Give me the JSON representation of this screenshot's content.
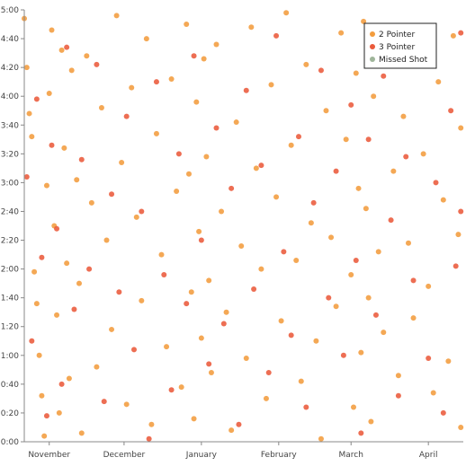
{
  "chart_data": {
    "type": "scatter",
    "title": "",
    "xlabel": "",
    "ylabel": "",
    "x_domain": [
      "2019-10-22",
      "2020-04-15"
    ],
    "y_range_seconds": [
      0,
      300
    ],
    "x_ticks": [
      {
        "date": "2019-11-01",
        "label": "November"
      },
      {
        "date": "2019-12-01",
        "label": "December"
      },
      {
        "date": "2020-01-01",
        "label": "January"
      },
      {
        "date": "2020-02-01",
        "label": "February"
      },
      {
        "date": "2020-03-01",
        "label": "March"
      },
      {
        "date": "2020-04-01",
        "label": "April"
      }
    ],
    "y_ticks": [
      {
        "value": 0,
        "label": "0:00"
      },
      {
        "value": 20,
        "label": "0:20"
      },
      {
        "value": 40,
        "label": "0:40"
      },
      {
        "value": 60,
        "label": "1:00"
      },
      {
        "value": 80,
        "label": "1:20"
      },
      {
        "value": 100,
        "label": "1:40"
      },
      {
        "value": 120,
        "label": "2:00"
      },
      {
        "value": 140,
        "label": "2:20"
      },
      {
        "value": 160,
        "label": "2:40"
      },
      {
        "value": 180,
        "label": "3:00"
      },
      {
        "value": 200,
        "label": "3:20"
      },
      {
        "value": 220,
        "label": "3:40"
      },
      {
        "value": 240,
        "label": "4:00"
      },
      {
        "value": 260,
        "label": "4:20"
      },
      {
        "value": 280,
        "label": "4:40"
      },
      {
        "value": 300,
        "label": "5:00"
      }
    ],
    "legend": {
      "position": "top-right",
      "entries": [
        {
          "name": "2 Pointer",
          "color": "#f39c3d"
        },
        {
          "name": "3 Pointer",
          "color": "#ea5a3b"
        },
        {
          "name": "Missed Shot",
          "color": "#9fb59a"
        }
      ]
    },
    "series": [
      {
        "name": "2 Pointer",
        "color": "#f39c3d",
        "points": [
          {
            "x": "2019-10-22",
            "y": 294
          },
          {
            "x": "2019-10-23",
            "y": 260
          },
          {
            "x": "2019-10-24",
            "y": 228
          },
          {
            "x": "2019-10-25",
            "y": 212
          },
          {
            "x": "2019-10-26",
            "y": 118
          },
          {
            "x": "2019-10-27",
            "y": 96
          },
          {
            "x": "2019-10-28",
            "y": 60
          },
          {
            "x": "2019-10-29",
            "y": 32
          },
          {
            "x": "2019-10-30",
            "y": 4
          },
          {
            "x": "2019-10-31",
            "y": 178
          },
          {
            "x": "2019-11-01",
            "y": 242
          },
          {
            "x": "2019-11-02",
            "y": 286
          },
          {
            "x": "2019-11-03",
            "y": 150
          },
          {
            "x": "2019-11-04",
            "y": 88
          },
          {
            "x": "2019-11-05",
            "y": 20
          },
          {
            "x": "2019-11-06",
            "y": 272
          },
          {
            "x": "2019-11-07",
            "y": 204
          },
          {
            "x": "2019-11-08",
            "y": 124
          },
          {
            "x": "2019-11-09",
            "y": 44
          },
          {
            "x": "2019-11-10",
            "y": 258
          },
          {
            "x": "2019-11-12",
            "y": 182
          },
          {
            "x": "2019-11-13",
            "y": 110
          },
          {
            "x": "2019-11-14",
            "y": 6
          },
          {
            "x": "2019-11-16",
            "y": 268
          },
          {
            "x": "2019-11-18",
            "y": 166
          },
          {
            "x": "2019-11-20",
            "y": 52
          },
          {
            "x": "2019-11-22",
            "y": 232
          },
          {
            "x": "2019-11-24",
            "y": 140
          },
          {
            "x": "2019-11-26",
            "y": 78
          },
          {
            "x": "2019-11-28",
            "y": 296
          },
          {
            "x": "2019-11-30",
            "y": 194
          },
          {
            "x": "2019-12-02",
            "y": 26
          },
          {
            "x": "2019-12-04",
            "y": 246
          },
          {
            "x": "2019-12-06",
            "y": 156
          },
          {
            "x": "2019-12-08",
            "y": 98
          },
          {
            "x": "2019-12-10",
            "y": 280
          },
          {
            "x": "2019-12-12",
            "y": 12
          },
          {
            "x": "2019-12-14",
            "y": 214
          },
          {
            "x": "2019-12-16",
            "y": 130
          },
          {
            "x": "2019-12-18",
            "y": 66
          },
          {
            "x": "2019-12-20",
            "y": 252
          },
          {
            "x": "2019-12-22",
            "y": 174
          },
          {
            "x": "2019-12-24",
            "y": 38
          },
          {
            "x": "2019-12-26",
            "y": 290
          },
          {
            "x": "2019-12-27",
            "y": 186
          },
          {
            "x": "2019-12-28",
            "y": 104
          },
          {
            "x": "2019-12-29",
            "y": 16
          },
          {
            "x": "2019-12-30",
            "y": 236
          },
          {
            "x": "2019-12-31",
            "y": 146
          },
          {
            "x": "2020-01-01",
            "y": 72
          },
          {
            "x": "2020-01-02",
            "y": 266
          },
          {
            "x": "2020-01-03",
            "y": 198
          },
          {
            "x": "2020-01-04",
            "y": 112
          },
          {
            "x": "2020-01-05",
            "y": 48
          },
          {
            "x": "2020-01-07",
            "y": 276
          },
          {
            "x": "2020-01-09",
            "y": 160
          },
          {
            "x": "2020-01-11",
            "y": 90
          },
          {
            "x": "2020-01-13",
            "y": 8
          },
          {
            "x": "2020-01-15",
            "y": 222
          },
          {
            "x": "2020-01-17",
            "y": 136
          },
          {
            "x": "2020-01-19",
            "y": 58
          },
          {
            "x": "2020-01-21",
            "y": 288
          },
          {
            "x": "2020-01-23",
            "y": 190
          },
          {
            "x": "2020-01-25",
            "y": 120
          },
          {
            "x": "2020-01-27",
            "y": 30
          },
          {
            "x": "2020-01-29",
            "y": 248
          },
          {
            "x": "2020-01-31",
            "y": 170
          },
          {
            "x": "2020-02-02",
            "y": 84
          },
          {
            "x": "2020-02-04",
            "y": 298
          },
          {
            "x": "2020-02-06",
            "y": 206
          },
          {
            "x": "2020-02-08",
            "y": 126
          },
          {
            "x": "2020-02-10",
            "y": 42
          },
          {
            "x": "2020-02-12",
            "y": 262
          },
          {
            "x": "2020-02-14",
            "y": 152
          },
          {
            "x": "2020-02-16",
            "y": 70
          },
          {
            "x": "2020-02-18",
            "y": 2
          },
          {
            "x": "2020-02-20",
            "y": 230
          },
          {
            "x": "2020-02-22",
            "y": 142
          },
          {
            "x": "2020-02-24",
            "y": 94
          },
          {
            "x": "2020-02-26",
            "y": 284
          },
          {
            "x": "2020-02-28",
            "y": 210
          },
          {
            "x": "2020-03-01",
            "y": 116
          },
          {
            "x": "2020-03-02",
            "y": 24
          },
          {
            "x": "2020-03-03",
            "y": 256
          },
          {
            "x": "2020-03-04",
            "y": 176
          },
          {
            "x": "2020-03-05",
            "y": 62
          },
          {
            "x": "2020-03-06",
            "y": 292
          },
          {
            "x": "2020-03-07",
            "y": 162
          },
          {
            "x": "2020-03-08",
            "y": 100
          },
          {
            "x": "2020-03-09",
            "y": 14
          },
          {
            "x": "2020-03-10",
            "y": 240
          },
          {
            "x": "2020-03-12",
            "y": 132
          },
          {
            "x": "2020-03-14",
            "y": 76
          },
          {
            "x": "2020-03-16",
            "y": 270
          },
          {
            "x": "2020-03-18",
            "y": 188
          },
          {
            "x": "2020-03-20",
            "y": 46
          },
          {
            "x": "2020-03-22",
            "y": 226
          },
          {
            "x": "2020-03-24",
            "y": 138
          },
          {
            "x": "2020-03-26",
            "y": 86
          },
          {
            "x": "2020-03-28",
            "y": 278
          },
          {
            "x": "2020-03-30",
            "y": 200
          },
          {
            "x": "2020-04-01",
            "y": 108
          },
          {
            "x": "2020-04-03",
            "y": 34
          },
          {
            "x": "2020-04-05",
            "y": 250
          },
          {
            "x": "2020-04-07",
            "y": 168
          },
          {
            "x": "2020-04-09",
            "y": 56
          },
          {
            "x": "2020-04-11",
            "y": 282
          },
          {
            "x": "2020-04-13",
            "y": 144
          },
          {
            "x": "2020-04-14",
            "y": 10
          },
          {
            "x": "2020-04-14",
            "y": 218
          }
        ]
      },
      {
        "name": "3 Pointer",
        "color": "#ea5a3b",
        "points": [
          {
            "x": "2019-10-23",
            "y": 184
          },
          {
            "x": "2019-10-25",
            "y": 70
          },
          {
            "x": "2019-10-27",
            "y": 238
          },
          {
            "x": "2019-10-29",
            "y": 128
          },
          {
            "x": "2019-10-31",
            "y": 18
          },
          {
            "x": "2019-11-02",
            "y": 206
          },
          {
            "x": "2019-11-04",
            "y": 148
          },
          {
            "x": "2019-11-06",
            "y": 40
          },
          {
            "x": "2019-11-08",
            "y": 274
          },
          {
            "x": "2019-11-11",
            "y": 92
          },
          {
            "x": "2019-11-14",
            "y": 196
          },
          {
            "x": "2019-11-17",
            "y": 120
          },
          {
            "x": "2019-11-20",
            "y": 262
          },
          {
            "x": "2019-11-23",
            "y": 28
          },
          {
            "x": "2019-11-26",
            "y": 172
          },
          {
            "x": "2019-11-29",
            "y": 104
          },
          {
            "x": "2019-12-02",
            "y": 226
          },
          {
            "x": "2019-12-05",
            "y": 64
          },
          {
            "x": "2019-12-08",
            "y": 160
          },
          {
            "x": "2019-12-11",
            "y": 2
          },
          {
            "x": "2019-12-14",
            "y": 250
          },
          {
            "x": "2019-12-17",
            "y": 116
          },
          {
            "x": "2019-12-20",
            "y": 36
          },
          {
            "x": "2019-12-23",
            "y": 200
          },
          {
            "x": "2019-12-26",
            "y": 96
          },
          {
            "x": "2019-12-29",
            "y": 268
          },
          {
            "x": "2020-01-01",
            "y": 140
          },
          {
            "x": "2020-01-04",
            "y": 54
          },
          {
            "x": "2020-01-07",
            "y": 218
          },
          {
            "x": "2020-01-10",
            "y": 82
          },
          {
            "x": "2020-01-13",
            "y": 176
          },
          {
            "x": "2020-01-16",
            "y": 12
          },
          {
            "x": "2020-01-19",
            "y": 244
          },
          {
            "x": "2020-01-22",
            "y": 106
          },
          {
            "x": "2020-01-25",
            "y": 192
          },
          {
            "x": "2020-01-28",
            "y": 48
          },
          {
            "x": "2020-01-31",
            "y": 282
          },
          {
            "x": "2020-02-03",
            "y": 132
          },
          {
            "x": "2020-02-06",
            "y": 74
          },
          {
            "x": "2020-02-09",
            "y": 212
          },
          {
            "x": "2020-02-12",
            "y": 24
          },
          {
            "x": "2020-02-15",
            "y": 166
          },
          {
            "x": "2020-02-18",
            "y": 258
          },
          {
            "x": "2020-02-21",
            "y": 100
          },
          {
            "x": "2020-02-24",
            "y": 188
          },
          {
            "x": "2020-02-27",
            "y": 60
          },
          {
            "x": "2020-03-01",
            "y": 234
          },
          {
            "x": "2020-03-03",
            "y": 126
          },
          {
            "x": "2020-03-05",
            "y": 6
          },
          {
            "x": "2020-03-08",
            "y": 210
          },
          {
            "x": "2020-03-11",
            "y": 88
          },
          {
            "x": "2020-03-14",
            "y": 254
          },
          {
            "x": "2020-03-17",
            "y": 154
          },
          {
            "x": "2020-03-20",
            "y": 32
          },
          {
            "x": "2020-03-23",
            "y": 198
          },
          {
            "x": "2020-03-26",
            "y": 112
          },
          {
            "x": "2020-03-29",
            "y": 270
          },
          {
            "x": "2020-04-01",
            "y": 58
          },
          {
            "x": "2020-04-04",
            "y": 180
          },
          {
            "x": "2020-04-07",
            "y": 20
          },
          {
            "x": "2020-04-10",
            "y": 230
          },
          {
            "x": "2020-04-12",
            "y": 122
          },
          {
            "x": "2020-04-14",
            "y": 160
          },
          {
            "x": "2020-04-14",
            "y": 284
          }
        ]
      },
      {
        "name": "Missed Shot",
        "color": "#9fb59a",
        "points": []
      }
    ]
  }
}
